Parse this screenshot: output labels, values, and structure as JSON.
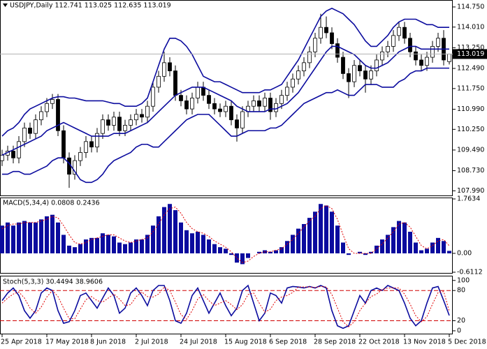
{
  "chart_data": [
    {
      "type": "candlestick",
      "title": "USDJPY,Daily  112.741 113.025 112.635 113.019",
      "categories": [
        "25 Apr 2018",
        null,
        null,
        null,
        null,
        null,
        null,
        null,
        "17 May 2018",
        null,
        null,
        null,
        null,
        null,
        null,
        null,
        "8 Jun 2018",
        null,
        null,
        null,
        null,
        null,
        null,
        null,
        "2 Jul 2018",
        null,
        null,
        null,
        null,
        null,
        null,
        null,
        "24 Jul 2018",
        null,
        null,
        null,
        null,
        null,
        null,
        null,
        "15 Aug 2018",
        null,
        null,
        null,
        null,
        null,
        null,
        null,
        "6 Sep 2018",
        null,
        null,
        null,
        null,
        null,
        null,
        null,
        "28 Sep 2018",
        null,
        null,
        null,
        null,
        null,
        null,
        null,
        "22 Oct 2018",
        null,
        null,
        null,
        null,
        null,
        null,
        null,
        "13 Nov 2018",
        null,
        null,
        null,
        null,
        null,
        null,
        null,
        "5 Dec 2018"
      ],
      "open": [
        109.1,
        109.3,
        109.45,
        109.2,
        109.8,
        110.3,
        110.1,
        110.6,
        110.9,
        111.2,
        111.35,
        110.2,
        109.2,
        108.6,
        109.1,
        109.4,
        109.8,
        109.6,
        110.1,
        110.6,
        110.4,
        110.7,
        110.2,
        110.4,
        110.6,
        110.8,
        110.7,
        111.1,
        111.8,
        112.2,
        112.7,
        112.4,
        111.5,
        111.3,
        111.0,
        111.4,
        111.8,
        111.5,
        111.2,
        111.0,
        110.9,
        111.1,
        110.6,
        110.3,
        110.9,
        111.1,
        111.3,
        111.1,
        111.4,
        110.9,
        111.2,
        111.5,
        111.8,
        112.1,
        112.4,
        112.7,
        113.1,
        113.6,
        114.0,
        113.8,
        113.4,
        112.9,
        112.3,
        112.0,
        112.6,
        112.4,
        112.1,
        112.4,
        112.8,
        113.1,
        113.3,
        113.7,
        114.0,
        113.6,
        113.1,
        112.8,
        112.6,
        112.9,
        113.3,
        113.6,
        112.741
      ],
      "high": [
        109.5,
        109.65,
        109.65,
        110.0,
        110.5,
        110.5,
        110.8,
        111.1,
        111.4,
        111.55,
        111.55,
        110.4,
        109.4,
        109.3,
        109.6,
        110.0,
        110.0,
        110.3,
        110.8,
        110.8,
        110.9,
        110.9,
        110.6,
        110.8,
        111.0,
        111.0,
        111.3,
        112.0,
        112.4,
        113.1,
        112.9,
        112.6,
        111.7,
        111.5,
        111.6,
        112.0,
        112.0,
        111.7,
        111.4,
        111.2,
        111.3,
        111.3,
        110.8,
        111.1,
        111.3,
        111.5,
        111.5,
        111.6,
        111.6,
        111.4,
        111.7,
        112.0,
        112.3,
        112.6,
        112.9,
        113.3,
        113.8,
        114.5,
        114.4,
        114.0,
        113.6,
        113.1,
        112.5,
        112.8,
        112.8,
        112.6,
        112.6,
        113.0,
        113.3,
        113.5,
        113.9,
        114.2,
        114.2,
        113.8,
        113.3,
        113.0,
        113.1,
        113.5,
        113.8,
        113.9,
        113.025
      ],
      "low": [
        108.9,
        109.1,
        109.0,
        109.0,
        109.6,
        109.9,
        109.9,
        110.4,
        110.7,
        111.0,
        110.0,
        109.0,
        108.1,
        108.4,
        108.9,
        109.2,
        109.4,
        109.4,
        109.9,
        110.2,
        110.2,
        110.0,
        110.0,
        110.2,
        110.4,
        110.5,
        110.5,
        110.9,
        111.6,
        112.0,
        112.2,
        111.3,
        111.1,
        110.8,
        110.8,
        111.2,
        111.3,
        111.0,
        110.8,
        110.7,
        110.7,
        110.4,
        109.8,
        110.1,
        110.7,
        110.9,
        110.9,
        110.9,
        110.6,
        110.7,
        111.0,
        111.3,
        111.6,
        111.9,
        112.2,
        112.5,
        112.9,
        113.4,
        113.6,
        113.2,
        112.7,
        112.1,
        111.4,
        111.8,
        112.2,
        111.6,
        111.9,
        112.2,
        112.6,
        112.9,
        113.1,
        113.5,
        113.4,
        112.9,
        112.6,
        112.4,
        112.4,
        112.7,
        113.1,
        112.6,
        112.635
      ],
      "close": [
        109.3,
        109.45,
        109.2,
        109.8,
        110.3,
        110.1,
        110.6,
        110.9,
        111.2,
        111.35,
        110.2,
        109.2,
        108.6,
        109.1,
        109.4,
        109.8,
        109.6,
        110.1,
        110.6,
        110.4,
        110.7,
        110.2,
        110.4,
        110.6,
        110.8,
        110.7,
        111.1,
        111.8,
        112.2,
        112.7,
        112.4,
        111.5,
        111.3,
        111.0,
        111.4,
        111.8,
        111.5,
        111.2,
        111.0,
        110.9,
        111.1,
        110.6,
        110.3,
        110.9,
        111.1,
        111.3,
        111.1,
        111.4,
        110.9,
        111.2,
        111.5,
        111.8,
        112.1,
        112.4,
        112.7,
        113.1,
        113.6,
        114.0,
        113.8,
        113.4,
        112.9,
        112.3,
        112.0,
        112.6,
        112.4,
        112.1,
        112.4,
        112.8,
        113.1,
        113.3,
        113.7,
        114.0,
        113.6,
        113.1,
        112.8,
        112.6,
        112.9,
        113.3,
        113.6,
        112.8,
        113.019
      ],
      "upper": [
        110.0,
        110.2,
        110.3,
        110.5,
        110.8,
        111.0,
        111.1,
        111.2,
        111.3,
        111.4,
        111.45,
        111.45,
        111.4,
        111.4,
        111.35,
        111.3,
        111.3,
        111.3,
        111.3,
        111.25,
        111.2,
        111.2,
        111.1,
        111.1,
        111.1,
        111.2,
        111.4,
        112.0,
        112.6,
        113.2,
        113.6,
        113.6,
        113.5,
        113.3,
        113.0,
        112.6,
        112.2,
        112.1,
        112.0,
        112.0,
        111.9,
        111.8,
        111.7,
        111.6,
        111.6,
        111.6,
        111.6,
        111.7,
        111.7,
        111.8,
        111.9,
        112.2,
        112.5,
        112.8,
        113.2,
        113.6,
        114.0,
        114.4,
        114.6,
        114.7,
        114.6,
        114.5,
        114.3,
        114.1,
        113.8,
        113.5,
        113.3,
        113.3,
        113.5,
        113.7,
        114.0,
        114.2,
        114.3,
        114.3,
        114.3,
        114.2,
        114.1,
        114.1,
        114.0,
        114.0,
        114.0
      ],
      "middle": [
        109.3,
        109.4,
        109.5,
        109.6,
        109.7,
        109.8,
        109.9,
        110.0,
        110.2,
        110.3,
        110.4,
        110.5,
        110.4,
        110.3,
        110.2,
        110.1,
        110.0,
        110.0,
        110.0,
        110.0,
        110.1,
        110.1,
        110.1,
        110.2,
        110.3,
        110.4,
        110.5,
        110.7,
        110.9,
        111.1,
        111.3,
        111.5,
        111.6,
        111.7,
        111.8,
        111.8,
        111.8,
        111.7,
        111.6,
        111.5,
        111.4,
        111.3,
        111.1,
        111.0,
        110.9,
        110.9,
        110.9,
        110.9,
        111.0,
        111.0,
        111.1,
        111.2,
        111.4,
        111.6,
        111.9,
        112.2,
        112.5,
        112.8,
        113.1,
        113.3,
        113.3,
        113.2,
        113.1,
        113.0,
        112.8,
        112.6,
        112.5,
        112.5,
        112.6,
        112.7,
        112.9,
        113.1,
        113.2,
        113.3,
        113.3,
        113.2,
        113.2,
        113.2,
        113.2,
        113.2,
        113.2
      ],
      "lower": [
        108.6,
        108.6,
        108.7,
        108.7,
        108.6,
        108.6,
        108.7,
        108.8,
        108.9,
        109.1,
        109.2,
        109.2,
        109.0,
        108.7,
        108.4,
        108.3,
        108.3,
        108.4,
        108.6,
        108.9,
        109.1,
        109.2,
        109.3,
        109.4,
        109.6,
        109.7,
        109.7,
        109.6,
        109.6,
        109.8,
        110.0,
        110.2,
        110.4,
        110.6,
        110.7,
        110.8,
        110.8,
        110.8,
        110.6,
        110.4,
        110.2,
        110.0,
        110.0,
        110.1,
        110.2,
        110.2,
        110.2,
        110.2,
        110.3,
        110.3,
        110.4,
        110.6,
        110.8,
        111.0,
        111.2,
        111.3,
        111.4,
        111.5,
        111.6,
        111.6,
        111.7,
        111.6,
        111.5,
        111.5,
        111.7,
        111.9,
        111.9,
        111.9,
        111.8,
        111.8,
        111.8,
        112.0,
        112.1,
        112.3,
        112.4,
        112.4,
        112.5,
        112.5,
        112.5,
        112.5,
        112.5
      ],
      "band_color": "#0b0b9e",
      "last_price": 113.019,
      "ylim": [
        107.82,
        114.98
      ],
      "yticks": [
        {
          "value": 114.75,
          "label": "114.750"
        },
        {
          "value": 114.01,
          "label": "114.010"
        },
        {
          "value": 113.25,
          "label": "113.250"
        },
        {
          "value": 112.49,
          "label": "112.490"
        },
        {
          "value": 111.75,
          "label": "111.750"
        },
        {
          "value": 110.99,
          "label": "110.990"
        },
        {
          "value": 110.25,
          "label": "110.250"
        },
        {
          "value": 109.49,
          "label": "109.490"
        },
        {
          "value": 108.73,
          "label": "108.730"
        },
        {
          "value": 107.99,
          "label": "107.990"
        }
      ]
    },
    {
      "type": "bar",
      "title": "MACD(5,34,4) 0.0808 0.2436",
      "values": [
        0.9,
        1.0,
        0.9,
        1.0,
        1.05,
        1.0,
        1.0,
        1.1,
        1.2,
        1.25,
        1.0,
        0.6,
        0.25,
        0.2,
        0.3,
        0.45,
        0.5,
        0.5,
        0.65,
        0.6,
        0.55,
        0.35,
        0.3,
        0.35,
        0.45,
        0.45,
        0.6,
        0.9,
        1.2,
        1.5,
        1.6,
        1.4,
        1.0,
        0.75,
        0.65,
        0.7,
        0.6,
        0.45,
        0.3,
        0.2,
        0.15,
        -0.05,
        -0.3,
        -0.35,
        -0.15,
        0.0,
        0.05,
        0.1,
        0.05,
        0.1,
        0.2,
        0.4,
        0.6,
        0.8,
        0.95,
        1.15,
        1.35,
        1.6,
        1.55,
        1.35,
        0.9,
        0.35,
        -0.05,
        0.0,
        0.05,
        -0.05,
        0.05,
        0.25,
        0.45,
        0.6,
        0.85,
        1.05,
        1.0,
        0.7,
        0.35,
        0.1,
        0.15,
        0.35,
        0.5,
        0.4,
        0.0808
      ],
      "signal": [
        0.8,
        0.9,
        0.95,
        0.95,
        1.0,
        1.0,
        1.0,
        1.05,
        1.1,
        1.2,
        1.15,
        0.9,
        0.6,
        0.35,
        0.3,
        0.35,
        0.45,
        0.5,
        0.55,
        0.6,
        0.6,
        0.5,
        0.4,
        0.35,
        0.4,
        0.45,
        0.5,
        0.7,
        0.95,
        1.25,
        1.45,
        1.5,
        1.3,
        1.0,
        0.8,
        0.7,
        0.65,
        0.55,
        0.4,
        0.3,
        0.2,
        0.05,
        -0.15,
        -0.3,
        -0.25,
        -0.1,
        0.0,
        0.05,
        0.05,
        0.1,
        0.15,
        0.3,
        0.45,
        0.65,
        0.85,
        1.05,
        1.2,
        1.45,
        1.55,
        1.45,
        1.1,
        0.6,
        0.15,
        0.0,
        0.0,
        0.0,
        0.0,
        0.15,
        0.3,
        0.5,
        0.7,
        0.95,
        1.0,
        0.85,
        0.55,
        0.25,
        0.15,
        0.25,
        0.4,
        0.45,
        0.2436
      ],
      "color": "#0b0b9e",
      "signal_color": "#e00000",
      "ylim": [
        -0.6112,
        1.7634
      ],
      "yticks": [
        1.7634,
        {
          "value": 0,
          "label": "0.00"
        },
        -0.6112
      ]
    },
    {
      "type": "line",
      "title": "Stoch(5,3,3) 30.4494 38.9606",
      "main": [
        60,
        75,
        85,
        70,
        40,
        25,
        40,
        75,
        85,
        80,
        40,
        15,
        18,
        40,
        70,
        75,
        60,
        45,
        65,
        85,
        70,
        35,
        45,
        75,
        85,
        70,
        50,
        80,
        90,
        90,
        60,
        20,
        15,
        35,
        70,
        85,
        60,
        35,
        55,
        75,
        50,
        30,
        45,
        80,
        90,
        55,
        20,
        35,
        75,
        70,
        55,
        85,
        88,
        87,
        85,
        88,
        85,
        90,
        85,
        40,
        10,
        5,
        10,
        40,
        70,
        55,
        80,
        85,
        80,
        90,
        85,
        80,
        55,
        25,
        10,
        20,
        55,
        85,
        88,
        60,
        30.4494
      ],
      "signal": [
        55,
        65,
        73,
        77,
        65,
        45,
        35,
        47,
        67,
        80,
        68,
        45,
        24,
        24,
        43,
        62,
        68,
        60,
        57,
        65,
        73,
        63,
        50,
        52,
        68,
        77,
        68,
        67,
        73,
        87,
        80,
        57,
        32,
        23,
        40,
        63,
        72,
        60,
        50,
        55,
        60,
        52,
        42,
        52,
        72,
        75,
        55,
        37,
        43,
        60,
        67,
        70,
        76,
        87,
        87,
        87,
        86,
        88,
        87,
        72,
        45,
        18,
        8,
        18,
        40,
        55,
        68,
        73,
        82,
        85,
        85,
        85,
        73,
        53,
        30,
        18,
        28,
        53,
        76,
        78,
        38.9606
      ],
      "color": "#0b0b9e",
      "signal_color": "#e00000",
      "ylim": [
        -7,
        108
      ],
      "yticks": [
        100,
        80,
        20,
        0
      ],
      "levels": [
        80,
        20
      ]
    }
  ]
}
